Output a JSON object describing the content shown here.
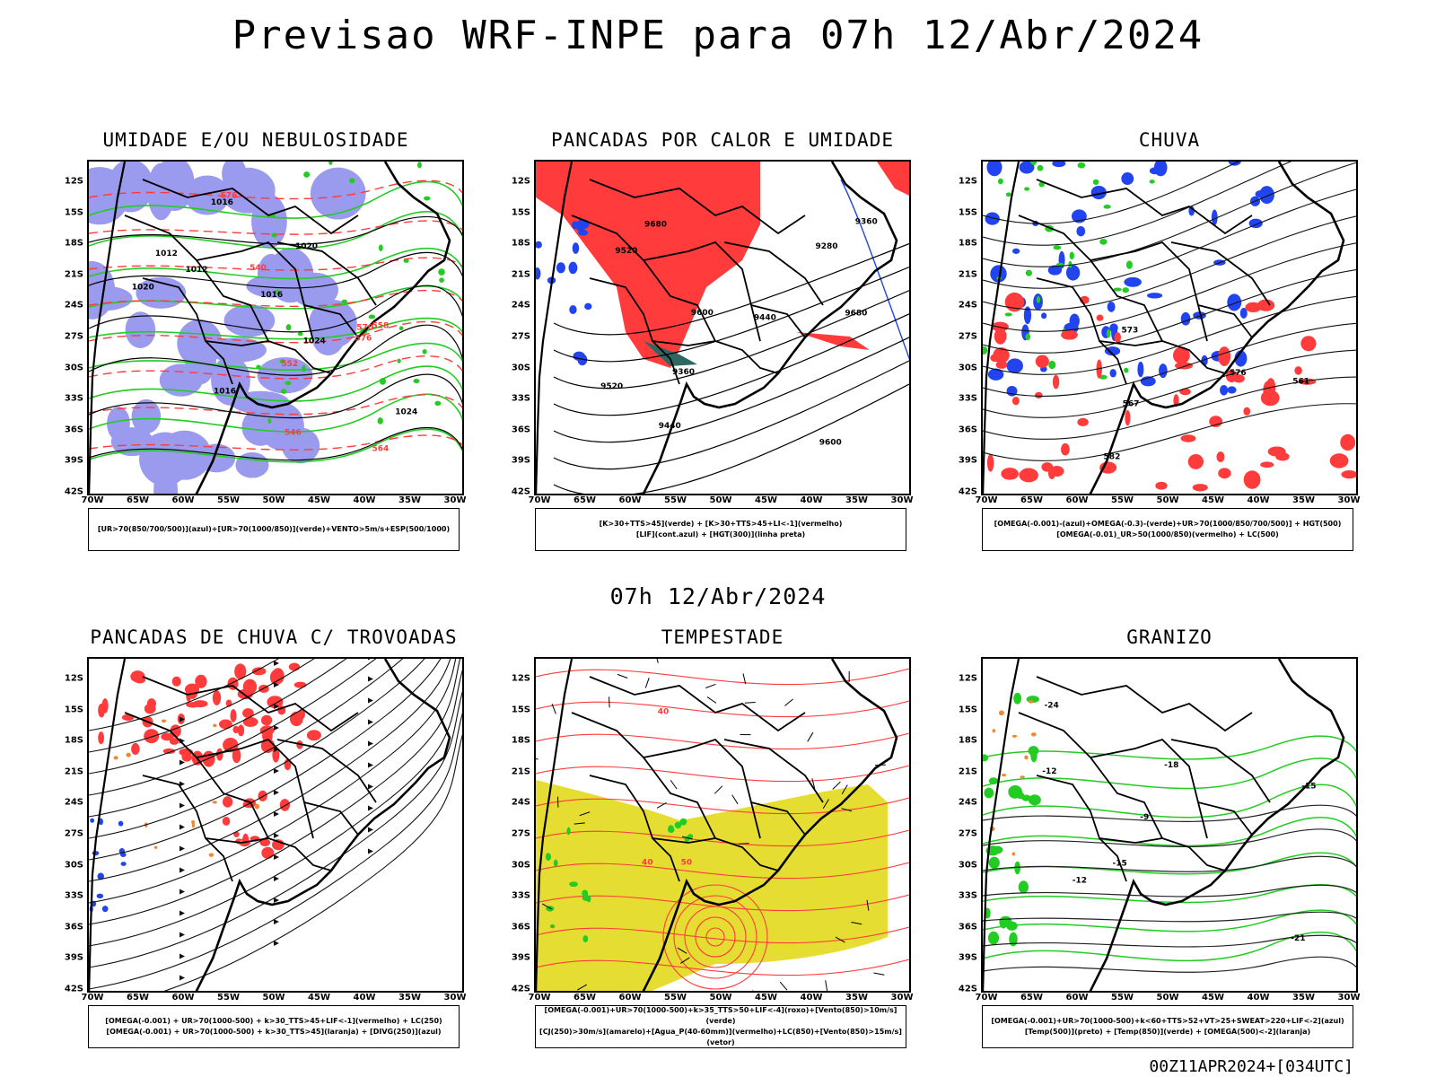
{
  "title": "Previsao WRF-INPE  para 07h 12/Abr/2024",
  "mid_title": "07h 12/Abr/2024",
  "footer": "00Z11APR2024+[034UTC]",
  "axes": {
    "lat_labels": [
      "12S",
      "15S",
      "18S",
      "21S",
      "24S",
      "27S",
      "30S",
      "33S",
      "36S",
      "39S",
      "42S"
    ],
    "lon_labels": [
      "70W",
      "65W",
      "60W",
      "55W",
      "50W",
      "45W",
      "40W",
      "35W",
      "30W"
    ]
  },
  "colors": {
    "blue_shade": "#9a9aee",
    "green": "#22cc22",
    "red": "#ff3b3b",
    "blue": "#2244ee",
    "dark_teal": "#2e6664",
    "yellow": "#e6dd33",
    "orange": "#ee8833"
  },
  "panels": [
    {
      "title": "UMIDADE E/OU NEBULOSIDADE",
      "legend": [
        "[UR>70(850/700/500)](azul)+[UR>70(1000/850)](verde)+VENTO>5m/s+ESP(500/1000)"
      ],
      "contour_labels": [
        "1012",
        "1012",
        "1016",
        "1016",
        "1016",
        "1020",
        "1020",
        "1024",
        "1024",
        "576",
        "576",
        "570",
        "564",
        "558",
        "552",
        "546",
        "540"
      ]
    },
    {
      "title": "PANCADAS POR CALOR E UMIDADE",
      "legend": [
        "[K>30+TTS>45](verde) + [K>30+TTS>45+LI<-1](vermelho)",
        "[LIF](cont.azul) + [HGT(300)](linha preta)"
      ],
      "contour_labels": [
        "9680",
        "9680",
        "9600",
        "9600",
        "9520",
        "9520",
        "9440",
        "9440",
        "9360",
        "9360",
        "9280"
      ]
    },
    {
      "title": "CHUVA",
      "legend": [
        "[OMEGA(-0.001)-(azul)+OMEGA(-0.3)-(verde)+UR>70(1000/850/700/500)] + HGT(500)",
        "[OMEGA(-0.01)_UR>50(1000/850)(vermelho) + LC(500)"
      ],
      "contour_labels": [
        "582",
        "576",
        "573",
        "567",
        "561"
      ]
    },
    {
      "title": "PANCADAS DE CHUVA C/ TROVOADAS",
      "legend": [
        "[OMEGA(-0.001) + UR>70(1000-500) + k>30_TTS>45+LIF<-1](vermelho) + LC(250)",
        "[OMEGA(-0.001) + UR>70(1000-500) + k>30_TTS>45](laranja) + [DIVG(250)](azul)"
      ],
      "contour_labels": []
    },
    {
      "title": "TEMPESTADE",
      "legend": [
        "[OMEGA(-0.001)+UR>70(1000-500)+k>35_TTS>50+LIF<-4](roxo)+[Vento(850)>10m/s](verde)",
        "[CJ(250)>30m/s](amarelo)+[Agua_P(40-60mm)](vermelho)+LC(850)+[Vento(850)>15m/s](vetor)"
      ],
      "contour_labels": [
        "50",
        "40",
        "40"
      ]
    },
    {
      "title": "GRANIZO",
      "legend": [
        "[OMEGA(-0.001)+UR>70(1000-500)+k<60+TTS>52+VT>25+SWEAT>220+LIF<-2](azul)",
        "[Temp(500)](preto) + [Temp(850)](verde) + [OMEGA(500)<-2](laranja)"
      ],
      "contour_labels": [
        "-9",
        "-12",
        "-12",
        "-15",
        "-15",
        "-18",
        "-21",
        "-24"
      ]
    }
  ]
}
